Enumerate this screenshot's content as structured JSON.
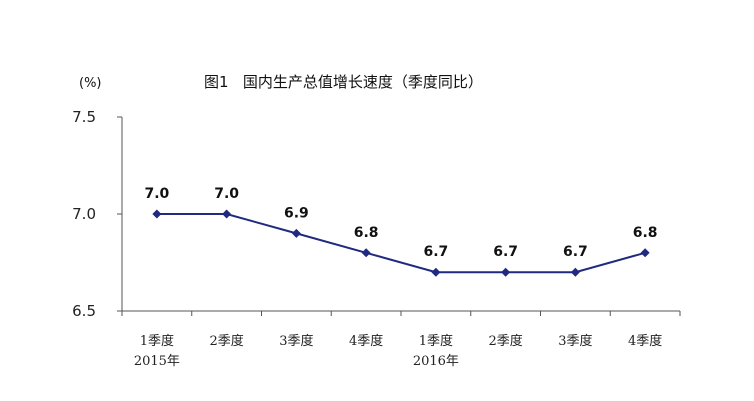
{
  "chart_data": {
    "type": "line",
    "title": "图1   国内生产总值增长速度（季度同比）",
    "unit_label": "(%)",
    "categories": [
      "1季度",
      "2季度",
      "3季度",
      "4季度",
      "1季度",
      "2季度",
      "3季度",
      "4季度"
    ],
    "year_labels": [
      {
        "index": 0,
        "text": "2015年"
      },
      {
        "index": 4,
        "text": "2016年"
      }
    ],
    "series": [
      {
        "values": [
          7.0,
          7.0,
          6.9,
          6.8,
          6.7,
          6.7,
          6.7,
          6.8
        ]
      }
    ],
    "data_labels": [
      "7.0",
      "7.0",
      "6.9",
      "6.8",
      "6.7",
      "6.7",
      "6.7",
      "6.8"
    ],
    "y_ticks": [
      "6.5",
      "7.0",
      "7.5"
    ],
    "ylim": [
      6.5,
      7.5
    ],
    "grid": false,
    "legend": "none",
    "colors": {
      "line": "#1f2a80",
      "marker": "#1f2a80",
      "axis": "#555555"
    }
  }
}
